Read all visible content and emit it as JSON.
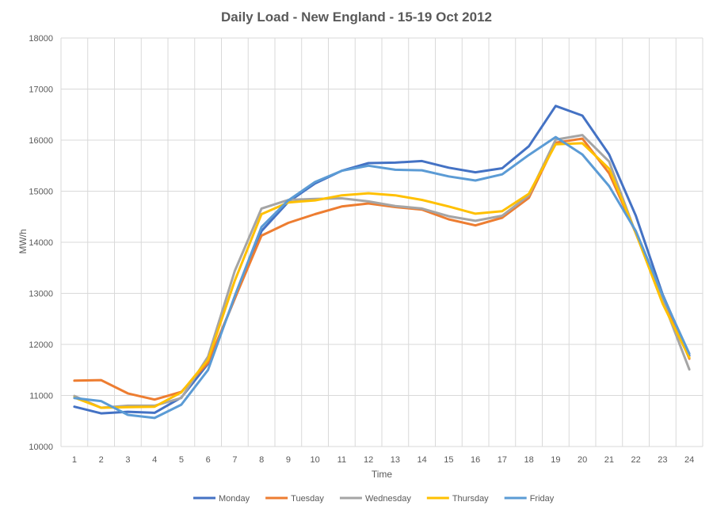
{
  "chart_data": {
    "type": "line",
    "title": "Daily Load - New England - 15-19 Oct 2012",
    "xlabel": "Time",
    "ylabel": "MW/h",
    "ylim": [
      10000,
      18000
    ],
    "ytick_step": 1000,
    "grid": true,
    "legend_position": "bottom",
    "categories": [
      "1",
      "2",
      "3",
      "4",
      "5",
      "6",
      "7",
      "8",
      "9",
      "10",
      "11",
      "12",
      "13",
      "14",
      "15",
      "16",
      "17",
      "18",
      "19",
      "20",
      "21",
      "22",
      "23",
      "24"
    ],
    "series": [
      {
        "name": "Monday",
        "color": "#4472c4",
        "values": [
          10780,
          10650,
          10680,
          10660,
          10960,
          11620,
          12900,
          14220,
          14790,
          15150,
          15400,
          15550,
          15560,
          15590,
          15460,
          15370,
          15450,
          15880,
          16670,
          16480,
          15720,
          14520,
          12980,
          11780
        ]
      },
      {
        "name": "Tuesday",
        "color": "#ed7d31",
        "values": [
          11290,
          11300,
          11040,
          10920,
          11070,
          11640,
          12900,
          14130,
          14380,
          14550,
          14700,
          14760,
          14690,
          14640,
          14450,
          14330,
          14480,
          14870,
          15950,
          16030,
          15350,
          14180,
          12950,
          11720
        ]
      },
      {
        "name": "Wednesday",
        "color": "#a5a5a5",
        "values": [
          10990,
          10760,
          10800,
          10800,
          10950,
          11760,
          13440,
          14660,
          14830,
          14850,
          14860,
          14800,
          14710,
          14660,
          14510,
          14420,
          14520,
          14920,
          16010,
          16100,
          15580,
          14170,
          12870,
          11510
        ]
      },
      {
        "name": "Thursday",
        "color": "#ffc000",
        "values": [
          10960,
          10760,
          10770,
          10780,
          11060,
          11700,
          13250,
          14550,
          14780,
          14820,
          14920,
          14960,
          14920,
          14830,
          14700,
          14560,
          14610,
          14950,
          15920,
          15940,
          15440,
          14180,
          12800,
          11740
        ]
      },
      {
        "name": "Friday",
        "color": "#5b9bd5",
        "values": [
          10950,
          10890,
          10620,
          10560,
          10820,
          11500,
          12950,
          14300,
          14820,
          15180,
          15400,
          15500,
          15420,
          15410,
          15290,
          15210,
          15330,
          15710,
          16060,
          15720,
          15100,
          14220,
          12960,
          11820
        ]
      }
    ]
  }
}
